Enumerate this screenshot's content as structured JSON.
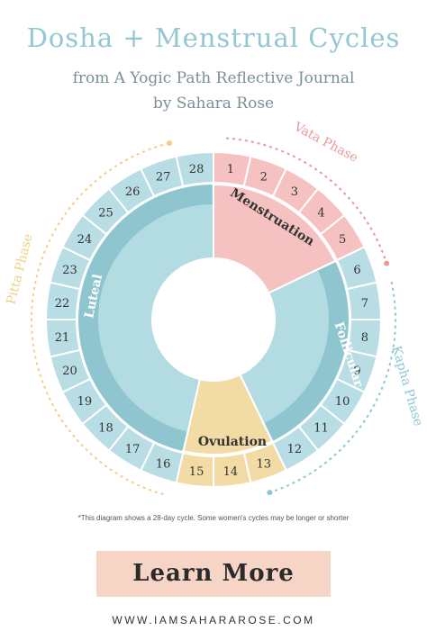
{
  "header": {
    "title": "Dosha + Menstrual Cycles",
    "subtitle": "from A Yogic Path Reflective Journal",
    "byline": "by Sahara Rose"
  },
  "days": [
    1,
    2,
    3,
    4,
    5,
    6,
    7,
    8,
    9,
    10,
    11,
    12,
    13,
    14,
    15,
    16,
    17,
    18,
    19,
    20,
    21,
    22,
    23,
    24,
    25,
    26,
    27,
    28
  ],
  "phases": [
    {
      "label": "Menstruation"
    },
    {
      "label": "Follicular"
    },
    {
      "label": "Ovulation"
    },
    {
      "label": "Luteal"
    }
  ],
  "doshas": [
    {
      "label": "Vata Phase"
    },
    {
      "label": "Kapha Phase"
    },
    {
      "label": "Pitta Phase"
    }
  ],
  "footnote": "*This diagram shows a 28-day cycle. Some women's cycles may be longer or shorter",
  "button": "Learn More",
  "url": "WWW.IAMSAHARAROSE.COM"
}
